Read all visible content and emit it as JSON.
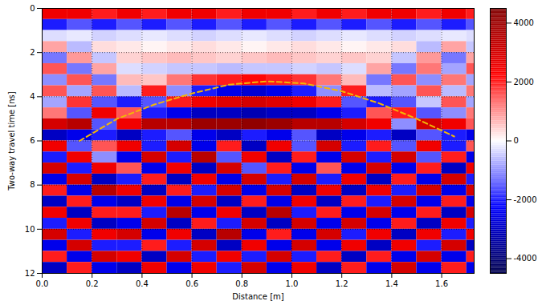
{
  "chart_data": {
    "type": "heatmap",
    "xlabel": "Distance [m]",
    "ylabel": "Two-way travel time [ns]",
    "xlim": [
      0,
      1.73
    ],
    "ylim": [
      12,
      0
    ],
    "xticks": [
      {
        "value": 0,
        "label": "0.0"
      },
      {
        "value": 0.2,
        "label": "0.2"
      },
      {
        "value": 0.4,
        "label": "0.4"
      },
      {
        "value": 0.6,
        "label": "0.6"
      },
      {
        "value": 0.8,
        "label": "0.8"
      },
      {
        "value": 1.0,
        "label": "1.0"
      },
      {
        "value": 1.2,
        "label": "1.2"
      },
      {
        "value": 1.4,
        "label": "1.4"
      },
      {
        "value": 1.6,
        "label": "1.6"
      }
    ],
    "yticks": [
      0,
      2,
      4,
      6,
      8,
      10,
      12
    ],
    "grid": true,
    "cells": {
      "x_edges": [
        0,
        0.1,
        0.2,
        0.3,
        0.4,
        0.5,
        0.6,
        0.7,
        0.8,
        0.9,
        1.0,
        1.1,
        1.2,
        1.3,
        1.4,
        1.5,
        1.6,
        1.7,
        1.8
      ],
      "y_edges": [
        0,
        0.5,
        1,
        1.5,
        2,
        2.5,
        3,
        3.5,
        4,
        4.5,
        5,
        5.5,
        6,
        6.5,
        7,
        7.5,
        8,
        8.5,
        9,
        9.5,
        10,
        10.5,
        11,
        11.5,
        12
      ],
      "values": [
        [
          2500,
          2500,
          2000,
          2500,
          2000,
          2500,
          2500,
          2000,
          2500,
          2500,
          2000,
          2500,
          2000,
          2500,
          2500,
          2000,
          2500,
          2000
        ],
        [
          -2000,
          -1500,
          -2000,
          -1500,
          -2000,
          -1500,
          -2000,
          -1500,
          -2000,
          -1500,
          -2000,
          -1500,
          -2000,
          -1500,
          -2000,
          -1500,
          -2000,
          -1500
        ],
        [
          -300,
          -200,
          -400,
          -300,
          -200,
          -300,
          -400,
          -300,
          -200,
          -300,
          -400,
          -300,
          -200,
          -300,
          -400,
          -300,
          -200,
          -300
        ],
        [
          800,
          -600,
          300,
          200,
          100,
          200,
          300,
          200,
          100,
          200,
          300,
          200,
          100,
          200,
          300,
          -600,
          800,
          -500
        ],
        [
          -1200,
          900,
          -500,
          400,
          500,
          600,
          500,
          400,
          500,
          600,
          500,
          400,
          500,
          400,
          -500,
          900,
          -1200,
          800
        ],
        [
          1500,
          -1200,
          800,
          -300,
          -400,
          -500,
          -500,
          -600,
          -500,
          -500,
          -400,
          -500,
          -300,
          800,
          -1200,
          1200,
          -800,
          1500
        ],
        [
          -1000,
          1500,
          -1200,
          600,
          500,
          1200,
          1800,
          2000,
          2200,
          2000,
          1800,
          1200,
          600,
          -1200,
          1500,
          -1000,
          1200,
          -800
        ],
        [
          1500,
          -800,
          1500,
          -600,
          2000,
          -1000,
          -2000,
          -2500,
          -2800,
          -2500,
          -2000,
          -1000,
          2000,
          -600,
          -800,
          1500,
          -600,
          1200
        ],
        [
          -800,
          1800,
          -1500,
          -2000,
          -1500,
          2000,
          2500,
          2800,
          3000,
          2800,
          2500,
          2000,
          -1500,
          -2000,
          -1500,
          -500,
          1500,
          -800
        ],
        [
          1200,
          -1500,
          2500,
          1500,
          -2000,
          -2500,
          -3000,
          -3000,
          -3200,
          -3000,
          -3000,
          -2500,
          -2000,
          1500,
          2000,
          -1500,
          -1000,
          1200
        ],
        [
          3000,
          3500,
          -1500,
          2500,
          3500,
          3500,
          4000,
          4000,
          4200,
          4000,
          3500,
          3500,
          3000,
          2500,
          -1000,
          3000,
          2500,
          1500
        ],
        [
          -3000,
          -2500,
          -2000,
          -3000,
          -2000,
          -1500,
          -2500,
          -3000,
          -2000,
          -2500,
          -1500,
          -3000,
          -2500,
          -2000,
          -3000,
          -1500,
          -2000,
          -2500
        ],
        [
          2500,
          -1500,
          1500,
          2500,
          -2000,
          3000,
          -2500,
          2000,
          -3000,
          2500,
          -1500,
          3000,
          -2000,
          2000,
          -1500,
          2500,
          -2000,
          1500
        ],
        [
          -2000,
          2500,
          -1000,
          -2500,
          3000,
          -2000,
          3500,
          -1500,
          2500,
          -3000,
          2000,
          -2500,
          3000,
          -2000,
          3000,
          -1500,
          2000,
          -2500
        ],
        [
          3000,
          -2000,
          2500,
          1500,
          -2500,
          2500,
          -3000,
          3000,
          -1500,
          2000,
          -2500,
          1500,
          -2500,
          3000,
          -2500,
          2000,
          -3000,
          2500
        ],
        [
          -2500,
          3000,
          -3000,
          -2000,
          2000,
          -3000,
          2500,
          -2500,
          3000,
          -2000,
          3000,
          -2000,
          2500,
          -3000,
          2000,
          -2500,
          3000,
          -2000
        ],
        [
          2000,
          -2500,
          3500,
          2500,
          -3000,
          2000,
          -2000,
          3000,
          -2500,
          3000,
          -3000,
          2500,
          -3000,
          2500,
          -2000,
          3000,
          -2500,
          3000
        ],
        [
          -3000,
          2000,
          -2500,
          -3000,
          2500,
          -2500,
          3000,
          -3000,
          2000,
          -2500,
          2500,
          -3000,
          2000,
          -2000,
          3000,
          -2500,
          2000,
          -2500
        ],
        [
          2500,
          -3000,
          2000,
          2000,
          -2000,
          3500,
          -2500,
          2500,
          -3000,
          3500,
          -2000,
          2000,
          -2500,
          3000,
          -2500,
          2000,
          -3000,
          3000
        ],
        [
          -2000,
          2500,
          -3000,
          -2500,
          3000,
          -3000,
          2000,
          -2000,
          3000,
          -3000,
          3000,
          -2500,
          3000,
          -2500,
          2000,
          -3000,
          2500,
          -2000
        ],
        [
          3000,
          -2000,
          2500,
          3000,
          -2500,
          2500,
          -3000,
          3500,
          -2500,
          2000,
          -2500,
          3000,
          -2000,
          2500,
          -3000,
          2500,
          -2000,
          2500
        ],
        [
          -2500,
          3000,
          -2000,
          -2000,
          2000,
          -2000,
          3000,
          -3000,
          2500,
          -2500,
          3000,
          -2500,
          2500,
          -3000,
          2500,
          -2000,
          3000,
          -3000
        ],
        [
          2000,
          -2500,
          3000,
          2500,
          -3000,
          3000,
          -2000,
          2500,
          -2000,
          3000,
          -2000,
          2000,
          -3000,
          2000,
          -2500,
          3000,
          -2500,
          2000
        ],
        [
          -3000,
          2000,
          -2500,
          -3000,
          2500,
          -2500,
          2500,
          -2000,
          3000,
          -2500,
          2500,
          -3000,
          2000,
          -2500,
          3000,
          -2500,
          2000,
          -2500
        ]
      ]
    },
    "colorbar": {
      "lim": [
        -4500,
        4500
      ],
      "ticks": [
        -4000,
        -2000,
        0,
        2000,
        4000
      ]
    },
    "overlay": {
      "x": [
        0.15,
        0.3,
        0.45,
        0.6,
        0.75,
        0.9,
        1.05,
        1.2,
        1.35,
        1.5,
        1.65
      ],
      "values": [
        6.0,
        5.0,
        4.35,
        3.85,
        3.45,
        3.3,
        3.4,
        3.75,
        4.3,
        5.0,
        5.8
      ],
      "color": "#f2b705",
      "line_style": "dashed"
    }
  }
}
